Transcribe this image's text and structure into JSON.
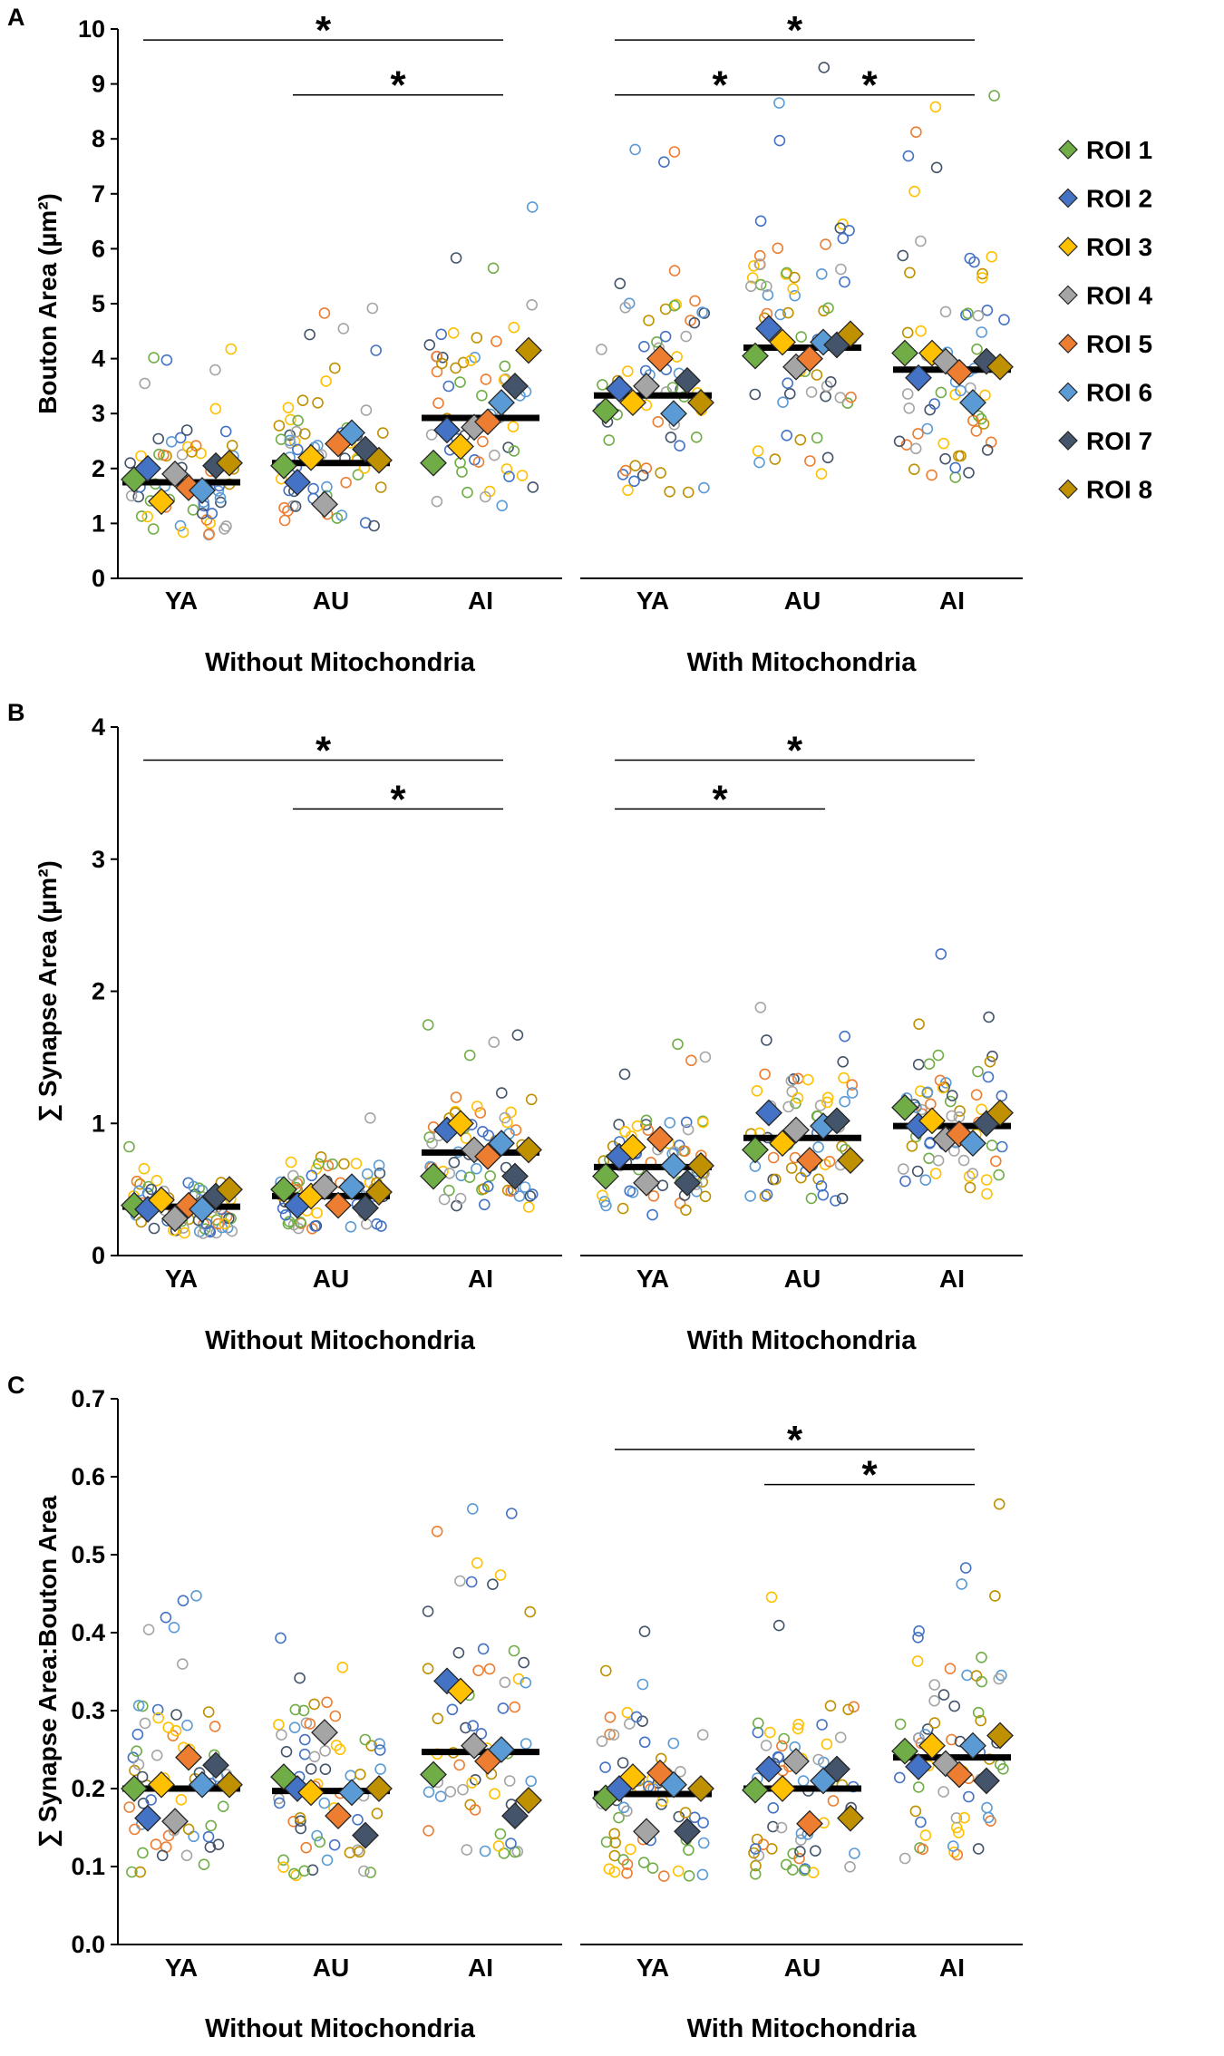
{
  "colors": {
    "roi": [
      "#70AD47",
      "#4472C4",
      "#FFC000",
      "#A5A5A5",
      "#ED7D31",
      "#5B9BD5",
      "#44546A",
      "#BF9000"
    ],
    "axis": "#000000",
    "mean_bar": "#000000"
  },
  "legend": {
    "entries": [
      "ROI 1",
      "ROI 2",
      "ROI 3",
      "ROI 4",
      "ROI 5",
      "ROI 6",
      "ROI 7",
      "ROI 8"
    ],
    "marker": "diamond"
  },
  "chart_data": [
    {
      "type": "scatter",
      "panel_label": "A",
      "ylabel": "Bouton Area (µm²)",
      "ylim": [
        0,
        10
      ],
      "yticks": [
        0,
        1,
        2,
        3,
        4,
        5,
        6,
        7,
        8,
        9,
        10
      ],
      "ytick_decimals": 0,
      "groups": [
        {
          "name": "Without Mitochondria",
          "categories": [
            "YA",
            "AU",
            "AI"
          ],
          "means": [
            1.75,
            2.1,
            2.92
          ],
          "roi_means": [
            [
              1.8,
              2.0,
              1.4,
              1.9,
              1.65,
              1.6,
              2.05,
              2.1
            ],
            [
              2.05,
              1.75,
              2.2,
              1.35,
              2.45,
              2.65,
              2.35,
              2.15
            ],
            [
              2.1,
              2.7,
              2.4,
              2.75,
              2.85,
              3.2,
              3.5,
              4.15
            ]
          ],
          "significance": [
            {
              "from": "YA",
              "to": "AI",
              "label": "*",
              "y": 9.8
            },
            {
              "from": "AU",
              "to": "AI",
              "label": "*",
              "y": 8.8
            }
          ]
        },
        {
          "name": "With Mitochondria",
          "categories": [
            "YA",
            "AU",
            "AI"
          ],
          "means": [
            3.33,
            4.2,
            3.8
          ],
          "roi_means": [
            [
              3.05,
              3.45,
              3.2,
              3.5,
              4.0,
              3.0,
              3.6,
              3.2
            ],
            [
              4.05,
              4.55,
              4.3,
              3.85,
              4.0,
              4.3,
              4.25,
              4.45
            ],
            [
              4.1,
              3.65,
              4.1,
              3.95,
              3.75,
              3.2,
              3.95,
              3.85
            ]
          ],
          "significance": [
            {
              "from": "YA",
              "to": "AI",
              "label": "*",
              "y": 9.8
            },
            {
              "from": "YA",
              "to": "AU",
              "label": "*",
              "y": 8.8
            },
            {
              "from": "AU",
              "to": "AI",
              "label": "*",
              "y": 8.8
            }
          ]
        }
      ]
    },
    {
      "type": "scatter",
      "panel_label": "B",
      "ylabel": "∑ Synapse Area (µm²)",
      "ylim": [
        0,
        4
      ],
      "yticks": [
        0,
        1,
        2,
        3,
        4
      ],
      "ytick_decimals": 0,
      "groups": [
        {
          "name": "Without Mitochondria",
          "categories": [
            "YA",
            "AU",
            "AI"
          ],
          "means": [
            0.37,
            0.45,
            0.78
          ],
          "roi_means": [
            [
              0.38,
              0.35,
              0.42,
              0.28,
              0.38,
              0.35,
              0.45,
              0.5
            ],
            [
              0.5,
              0.38,
              0.45,
              0.52,
              0.38,
              0.52,
              0.36,
              0.48
            ],
            [
              0.6,
              0.95,
              1.0,
              0.8,
              0.75,
              0.85,
              0.6,
              0.8
            ]
          ],
          "significance": [
            {
              "from": "YA",
              "to": "AI",
              "label": "*",
              "y": 3.75
            },
            {
              "from": "AU",
              "to": "AI",
              "label": "*",
              "y": 3.38
            }
          ]
        },
        {
          "name": "With Mitochondria",
          "categories": [
            "YA",
            "AU",
            "AI"
          ],
          "means": [
            0.67,
            0.89,
            0.98
          ],
          "roi_means": [
            [
              0.6,
              0.75,
              0.82,
              0.55,
              0.88,
              0.68,
              0.55,
              0.68
            ],
            [
              0.8,
              1.08,
              0.85,
              0.95,
              0.72,
              0.98,
              1.02,
              0.72
            ],
            [
              1.12,
              0.98,
              1.02,
              0.88,
              0.92,
              0.85,
              1.0,
              1.08
            ]
          ],
          "significance": [
            {
              "from": "YA",
              "to": "AI",
              "label": "*",
              "y": 3.75
            },
            {
              "from": "YA",
              "to": "AU",
              "label": "*",
              "y": 3.38
            }
          ]
        }
      ]
    },
    {
      "type": "scatter",
      "panel_label": "C",
      "ylabel": "∑ Synapse Area:Bouton Area",
      "ylim": [
        0,
        0.7
      ],
      "yticks": [
        0,
        0.1,
        0.2,
        0.3,
        0.4,
        0.5,
        0.6,
        0.7
      ],
      "ytick_decimals": 1,
      "groups": [
        {
          "name": "Without Mitochondria",
          "categories": [
            "YA",
            "AU",
            "AI"
          ],
          "means": [
            0.2,
            0.197,
            0.247
          ],
          "roi_means": [
            [
              0.2,
              0.162,
              0.205,
              0.158,
              0.24,
              0.205,
              0.23,
              0.205
            ],
            [
              0.215,
              0.2,
              0.195,
              0.272,
              0.165,
              0.195,
              0.14,
              0.2
            ],
            [
              0.218,
              0.338,
              0.325,
              0.255,
              0.235,
              0.25,
              0.165,
              0.185
            ]
          ],
          "significance": []
        },
        {
          "name": "With Mitochondria",
          "categories": [
            "YA",
            "AU",
            "AI"
          ],
          "means": [
            0.193,
            0.2,
            0.24
          ],
          "roi_means": [
            [
              0.188,
              0.2,
              0.215,
              0.145,
              0.22,
              0.205,
              0.145,
              0.2
            ],
            [
              0.198,
              0.225,
              0.2,
              0.235,
              0.155,
              0.21,
              0.225,
              0.162
            ],
            [
              0.248,
              0.228,
              0.255,
              0.232,
              0.218,
              0.255,
              0.21,
              0.268
            ]
          ],
          "significance": [
            {
              "from": "YA",
              "to": "AI",
              "label": "*",
              "y": 0.635
            },
            {
              "from": "AU",
              "to": "AI",
              "label": "*",
              "y": 0.59
            }
          ]
        }
      ]
    }
  ]
}
